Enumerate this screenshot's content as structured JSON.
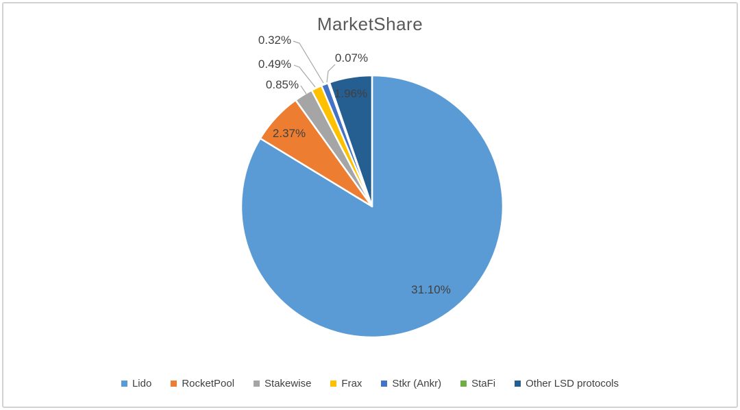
{
  "window": {
    "background_color": "#ffffff",
    "frame_border_color": "#d2d2d2"
  },
  "chart_data": {
    "type": "pie",
    "title": "MarketShare",
    "title_color": "#595959",
    "label_color": "#404040",
    "leader_line_color": "#a6a6a6",
    "slice_border_color": "#ffffff",
    "legend_position": "bottom",
    "start_angle_deg": 0,
    "direction": "clockwise",
    "note": "slice angles are proportional to value/sum(values); labels show raw percent values",
    "series": [
      {
        "name": "Lido",
        "value": 31.1,
        "label": "31.10%",
        "color": "#5B9BD5"
      },
      {
        "name": "RocketPool",
        "value": 2.37,
        "label": "2.37%",
        "color": "#ED7D31"
      },
      {
        "name": "Stakewise",
        "value": 0.85,
        "label": "0.85%",
        "color": "#A5A5A5"
      },
      {
        "name": "Frax",
        "value": 0.49,
        "label": "0.49%",
        "color": "#FFC000"
      },
      {
        "name": "Stkr (Ankr)",
        "value": 0.32,
        "label": "0.32%",
        "color": "#4472C4"
      },
      {
        "name": "StaFi",
        "value": 0.07,
        "label": "0.07%",
        "color": "#70AD47"
      },
      {
        "name": "Other LSD protocols",
        "value": 1.96,
        "label": "1.96%",
        "color": "#255E91"
      }
    ]
  }
}
